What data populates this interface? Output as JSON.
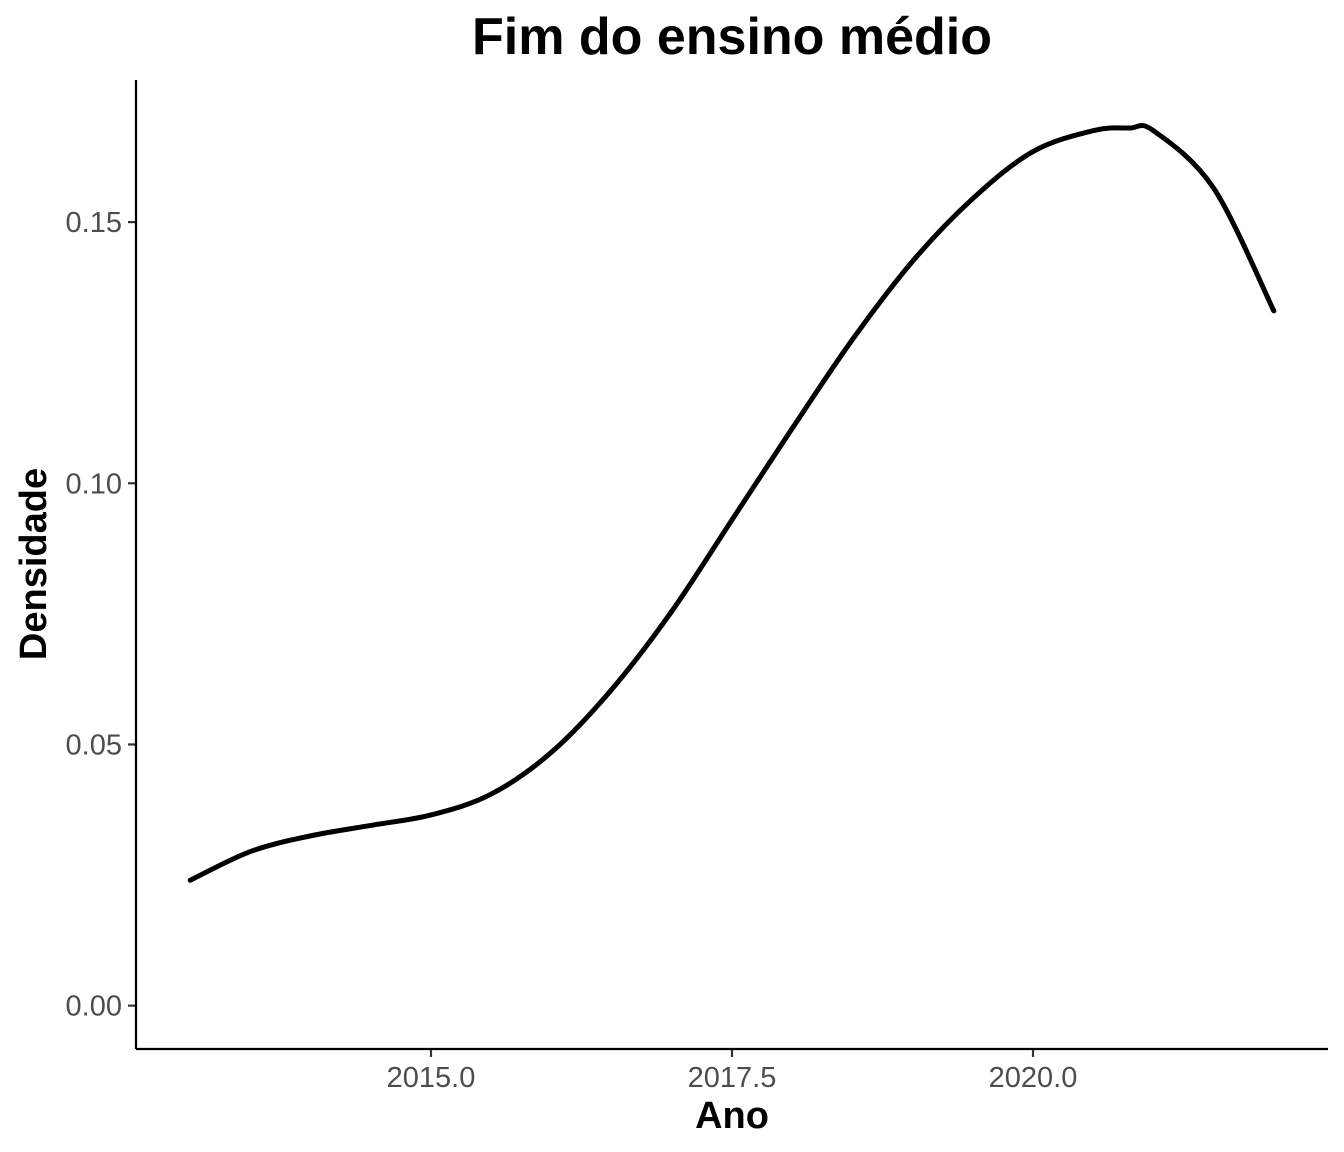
{
  "chart_data": {
    "type": "line",
    "title": "Fim do ensino médio",
    "xlabel": "Ano",
    "ylabel": "Densidade",
    "xlim": [
      2012.55,
      2022.45
    ],
    "ylim": [
      -0.0083,
      0.1772
    ],
    "x_ticks": [
      2015.0,
      2017.5,
      2020.0
    ],
    "x_tick_labels": [
      "2015.0",
      "2017.5",
      "2020.0"
    ],
    "y_ticks": [
      0.0,
      0.05,
      0.1,
      0.15
    ],
    "y_tick_labels": [
      "0.00",
      "0.05",
      "0.10",
      "0.15"
    ],
    "grid": false,
    "legend": "none",
    "line_color": "#000000",
    "series": [
      {
        "x": [
          2013.0,
          2013.5,
          2014.0,
          2014.5,
          2015.0,
          2015.5,
          2016.0,
          2016.5,
          2017.0,
          2017.5,
          2018.0,
          2018.5,
          2019.0,
          2019.5,
          2020.0,
          2020.5,
          2020.8,
          2021.0,
          2021.5,
          2022.0
        ],
        "y": [
          0.024,
          0.0295,
          0.0325,
          0.0345,
          0.0365,
          0.0405,
          0.0485,
          0.0605,
          0.0755,
          0.093,
          0.1105,
          0.1275,
          0.1425,
          0.1545,
          0.1635,
          0.1675,
          0.168,
          0.1675,
          0.1565,
          0.133
        ]
      }
    ]
  }
}
